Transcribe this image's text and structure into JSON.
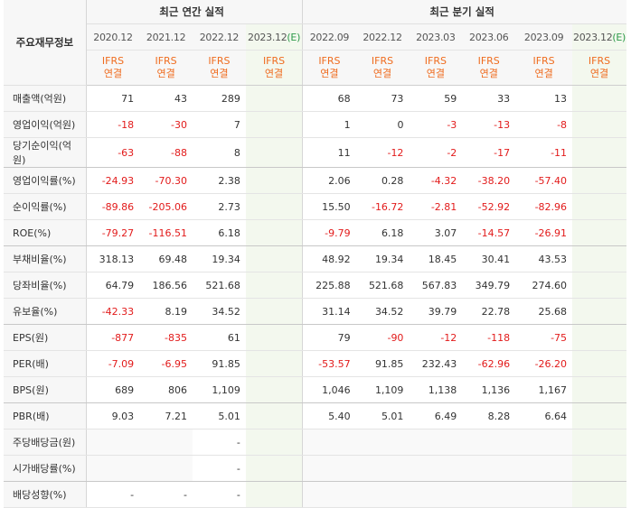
{
  "header": {
    "corner_label": "주요재무정보",
    "annual_title": "최근 연간 실적",
    "quarterly_title": "최근 분기 실적",
    "ifrs_line1": "IFRS",
    "ifrs_line2": "연결"
  },
  "annual_periods": [
    "2020.12",
    "2021.12",
    "2022.12",
    "2023.12"
  ],
  "quarterly_periods": [
    "2022.09",
    "2022.12",
    "2023.03",
    "2023.06",
    "2023.09",
    "2023.12"
  ],
  "estimate_marker": "(E)",
  "rows": [
    {
      "label": "매출액(억원)",
      "annual": [
        "71",
        "43",
        "289",
        ""
      ],
      "quarterly": [
        "68",
        "73",
        "59",
        "33",
        "13",
        ""
      ]
    },
    {
      "label": "영업이익(억원)",
      "annual": [
        "-18",
        "-30",
        "7",
        ""
      ],
      "quarterly": [
        "1",
        "0",
        "-3",
        "-13",
        "-8",
        ""
      ]
    },
    {
      "label": "당기순이익(억원)",
      "annual": [
        "-63",
        "-88",
        "8",
        ""
      ],
      "quarterly": [
        "11",
        "-12",
        "-2",
        "-17",
        "-11",
        ""
      ]
    },
    {
      "label": "영업이익률(%)",
      "annual": [
        "-24.93",
        "-70.30",
        "2.38",
        ""
      ],
      "quarterly": [
        "2.06",
        "0.28",
        "-4.32",
        "-38.20",
        "-57.40",
        ""
      ]
    },
    {
      "label": "순이익률(%)",
      "annual": [
        "-89.86",
        "-205.06",
        "2.73",
        ""
      ],
      "quarterly": [
        "15.50",
        "-16.72",
        "-2.81",
        "-52.92",
        "-82.96",
        ""
      ]
    },
    {
      "label": "ROE(%)",
      "annual": [
        "-79.27",
        "-116.51",
        "6.18",
        ""
      ],
      "quarterly": [
        "-9.79",
        "6.18",
        "3.07",
        "-14.57",
        "-26.91",
        ""
      ]
    },
    {
      "label": "부채비율(%)",
      "annual": [
        "318.13",
        "69.48",
        "19.34",
        ""
      ],
      "quarterly": [
        "48.92",
        "19.34",
        "18.45",
        "30.41",
        "43.53",
        ""
      ]
    },
    {
      "label": "당좌비율(%)",
      "annual": [
        "64.79",
        "186.56",
        "521.68",
        ""
      ],
      "quarterly": [
        "225.88",
        "521.68",
        "567.83",
        "349.79",
        "274.60",
        ""
      ]
    },
    {
      "label": "유보율(%)",
      "annual": [
        "-42.33",
        "8.19",
        "34.52",
        ""
      ],
      "quarterly": [
        "31.14",
        "34.52",
        "39.79",
        "22.78",
        "25.68",
        ""
      ]
    },
    {
      "label": "EPS(원)",
      "annual": [
        "-877",
        "-835",
        "61",
        ""
      ],
      "quarterly": [
        "79",
        "-90",
        "-12",
        "-118",
        "-75",
        ""
      ]
    },
    {
      "label": "PER(배)",
      "annual": [
        "-7.09",
        "-6.95",
        "91.85",
        ""
      ],
      "quarterly": [
        "-53.57",
        "91.85",
        "232.43",
        "-62.96",
        "-26.20",
        ""
      ]
    },
    {
      "label": "BPS(원)",
      "annual": [
        "689",
        "806",
        "1,109",
        ""
      ],
      "quarterly": [
        "1,046",
        "1,109",
        "1,138",
        "1,136",
        "1,167",
        ""
      ]
    },
    {
      "label": "PBR(배)",
      "annual": [
        "9.03",
        "7.21",
        "5.01",
        ""
      ],
      "quarterly": [
        "5.40",
        "5.01",
        "6.49",
        "8.28",
        "6.64",
        ""
      ]
    },
    {
      "label": "주당배당금(원)",
      "annual": [
        "",
        "",
        "-",
        ""
      ],
      "quarterly": [
        "",
        "",
        "",
        "",
        "",
        ""
      ]
    },
    {
      "label": "시가배당률(%)",
      "annual": [
        "",
        "",
        "-",
        ""
      ],
      "quarterly": [
        "",
        "",
        "",
        "",
        "",
        ""
      ]
    },
    {
      "label": "배당성향(%)",
      "annual": [
        "-",
        "-",
        "-",
        ""
      ],
      "quarterly": [
        "",
        "",
        "",
        "",
        "",
        ""
      ]
    }
  ],
  "colors": {
    "negative": "#e21b1b",
    "ifrs": "#ef6c1f",
    "estimate_bg": "#f3f8ee",
    "estimate_marker": "#2e9a4a"
  }
}
